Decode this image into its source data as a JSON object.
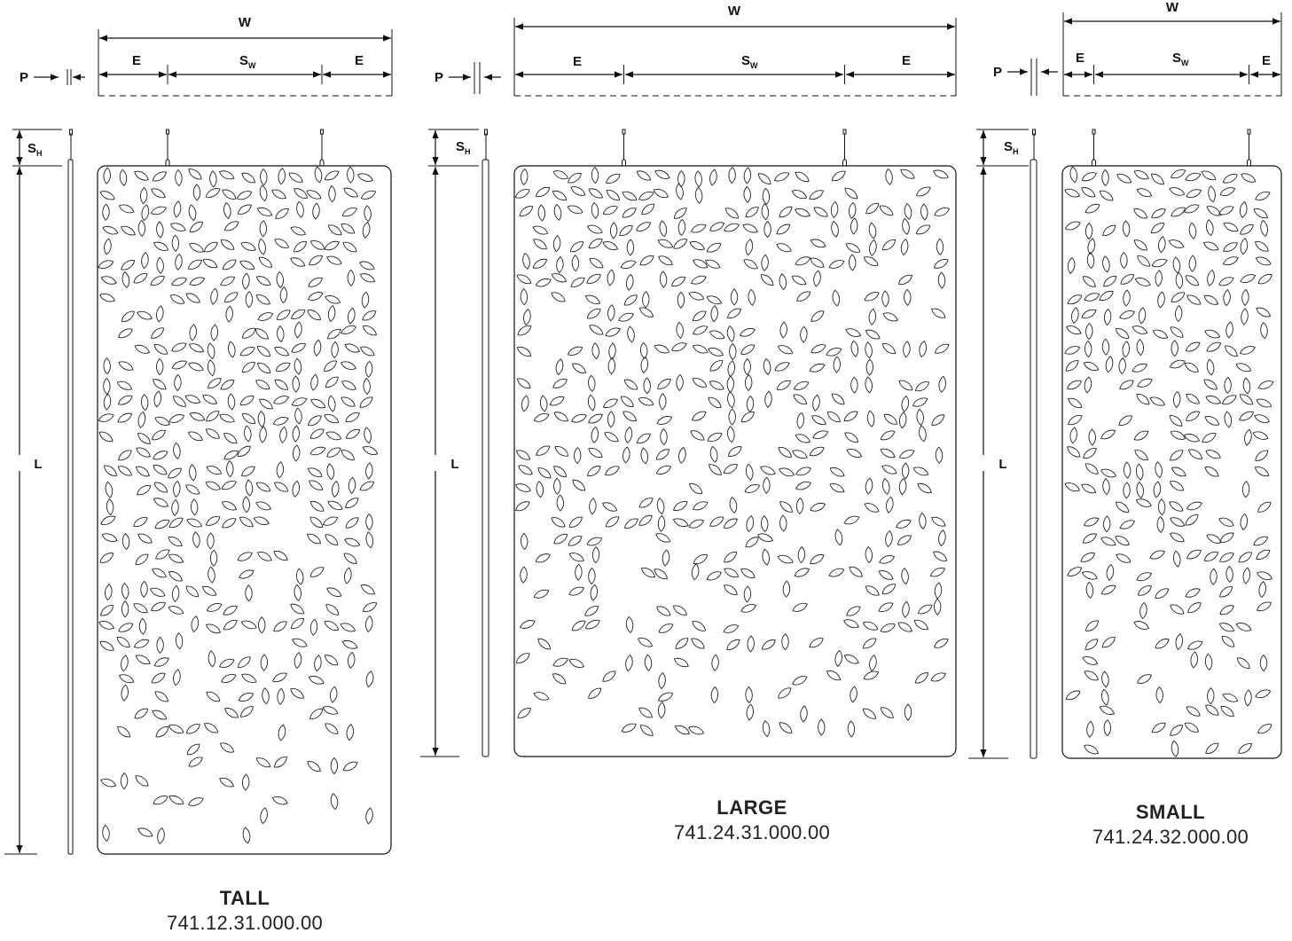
{
  "labels": {
    "width": "W",
    "edge": "E",
    "depth": "P",
    "length": "L",
    "spacing_w_main": "S",
    "spacing_w_sub": "W",
    "spacing_h_main": "S",
    "spacing_h_sub": "H"
  },
  "panels": [
    {
      "key": "tall",
      "name": "TALL",
      "code": "741.12.31.000.00",
      "density": 0.86
    },
    {
      "key": "large",
      "name": "LARGE",
      "code": "741.24.31.000.00",
      "density": 0.74
    },
    {
      "key": "small",
      "name": "SMALL",
      "code": "741.24.32.000.00",
      "density": 0.82
    }
  ]
}
